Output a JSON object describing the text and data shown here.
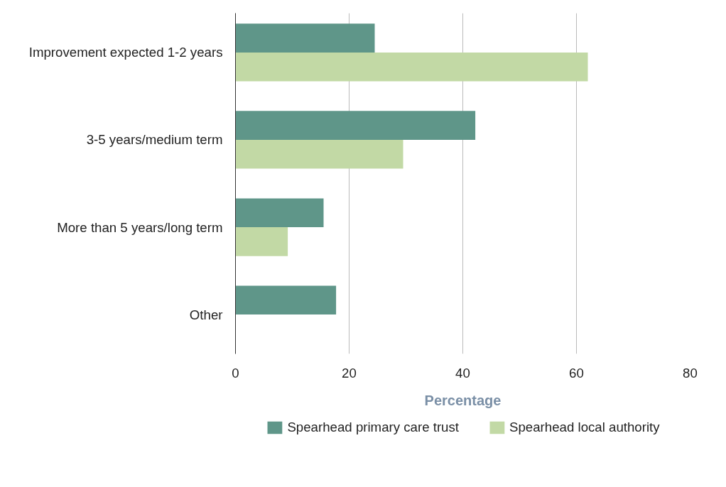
{
  "chart_data": {
    "type": "bar",
    "orientation": "horizontal",
    "xlabel": "Percentage",
    "categories": [
      "Improvement expected 1-2 years",
      "3-5 years/medium term",
      "More than 5 years/long term",
      "Other"
    ],
    "series": [
      {
        "name": "Spearhead primary care trust",
        "color": "#5f9689",
        "values": [
          24.5,
          42.2,
          15.5,
          17.7
        ]
      },
      {
        "name": "Spearhead local authority",
        "color": "#c2d9a5",
        "values": [
          62,
          29.5,
          9.2,
          null
        ]
      }
    ],
    "xlim": [
      0,
      80
    ],
    "xticks": [
      0,
      20,
      40,
      60,
      80
    ],
    "grid": "x",
    "legend": "bottom"
  }
}
